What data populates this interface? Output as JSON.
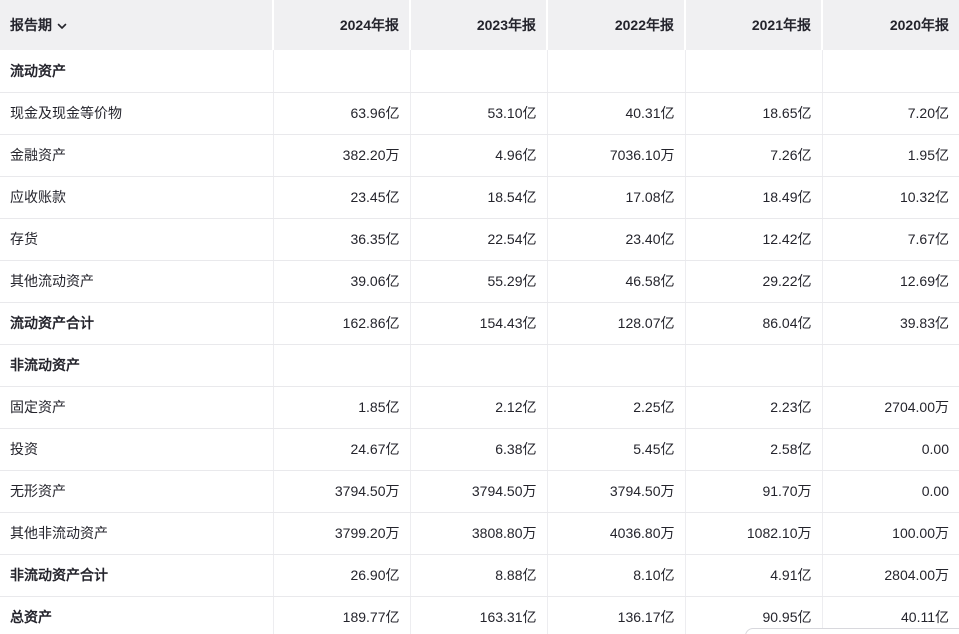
{
  "colors": {
    "header_bg": "#f0f0f2",
    "text": "#24242c",
    "row_border": "#e9e9ec",
    "col_border": "#ededf0"
  },
  "table": {
    "header": {
      "label_column": "报告期",
      "sort_icon": "chevron-down",
      "year_columns": [
        "2024年报",
        "2023年报",
        "2022年报",
        "2021年报",
        "2020年报"
      ]
    },
    "rows": [
      {
        "label": "流动资产",
        "bold": true,
        "values": [
          "",
          "",
          "",
          "",
          ""
        ]
      },
      {
        "label": "现金及现金等价物",
        "bold": false,
        "values": [
          "63.96亿",
          "53.10亿",
          "40.31亿",
          "18.65亿",
          "7.20亿"
        ]
      },
      {
        "label": "金融资产",
        "bold": false,
        "values": [
          "382.20万",
          "4.96亿",
          "7036.10万",
          "7.26亿",
          "1.95亿"
        ]
      },
      {
        "label": "应收账款",
        "bold": false,
        "values": [
          "23.45亿",
          "18.54亿",
          "17.08亿",
          "18.49亿",
          "10.32亿"
        ]
      },
      {
        "label": "存货",
        "bold": false,
        "values": [
          "36.35亿",
          "22.54亿",
          "23.40亿",
          "12.42亿",
          "7.67亿"
        ]
      },
      {
        "label": "其他流动资产",
        "bold": false,
        "values": [
          "39.06亿",
          "55.29亿",
          "46.58亿",
          "29.22亿",
          "12.69亿"
        ]
      },
      {
        "label": "流动资产合计",
        "bold": true,
        "values": [
          "162.86亿",
          "154.43亿",
          "128.07亿",
          "86.04亿",
          "39.83亿"
        ]
      },
      {
        "label": "非流动资产",
        "bold": true,
        "values": [
          "",
          "",
          "",
          "",
          ""
        ]
      },
      {
        "label": "固定资产",
        "bold": false,
        "values": [
          "1.85亿",
          "2.12亿",
          "2.25亿",
          "2.23亿",
          "2704.00万"
        ]
      },
      {
        "label": "投资",
        "bold": false,
        "values": [
          "24.67亿",
          "6.38亿",
          "5.45亿",
          "2.58亿",
          "0.00"
        ]
      },
      {
        "label": "无形资产",
        "bold": false,
        "values": [
          "3794.50万",
          "3794.50万",
          "3794.50万",
          "91.70万",
          "0.00"
        ]
      },
      {
        "label": "其他非流动资产",
        "bold": false,
        "values": [
          "3799.20万",
          "3808.80万",
          "4036.80万",
          "1082.10万",
          "100.00万"
        ]
      },
      {
        "label": "非流动资产合计",
        "bold": true,
        "values": [
          "26.90亿",
          "8.88亿",
          "8.10亿",
          "4.91亿",
          "2804.00万"
        ]
      },
      {
        "label": "总资产",
        "bold": true,
        "values": [
          "189.77亿",
          "163.31亿",
          "136.17亿",
          "90.95亿",
          "40.11亿"
        ]
      }
    ]
  }
}
